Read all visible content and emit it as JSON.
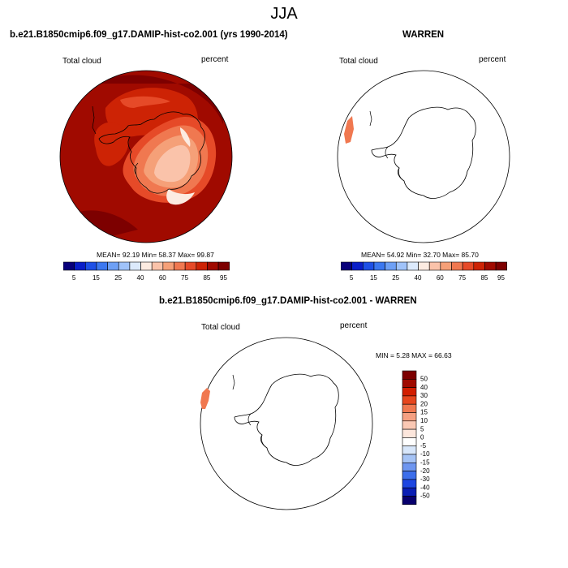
{
  "page": {
    "title": "JJA"
  },
  "panel_model": {
    "title": "b.e21.B1850cmip6.f09_g17.DAMIP-hist-co2.001 (yrs 1990-2014)",
    "variable": "Total cloud",
    "units": "percent",
    "stats": "MEAN=  92.19  Min=  58.37  Max=  99.87"
  },
  "panel_obs": {
    "title": "WARREN",
    "variable": "Total cloud",
    "units": "percent",
    "stats": "MEAN=  54.92  Min=  32.70  Max=  85.70"
  },
  "panel_diff": {
    "title": "b.e21.B1850cmip6.f09_g17.DAMIP-hist-co2.001 - WARREN",
    "variable": "Total cloud",
    "units": "percent",
    "stats": "MIN =  5.28 MAX =  66.63"
  },
  "colors": {
    "abs_scale": [
      "#08007a",
      "#0a1ec8",
      "#1e50e6",
      "#3c78f0",
      "#6ea0f5",
      "#a0c3fa",
      "#dceafc",
      "#fcebe1",
      "#fac3aa",
      "#f5a078",
      "#f07850",
      "#e64a28",
      "#cd2305",
      "#a00a00",
      "#7d0000"
    ],
    "diff_scale": [
      "#08006e",
      "#0a1eb4",
      "#1e46e1",
      "#3c6eeb",
      "#6e96f0",
      "#a5c3f5",
      "#d7e6fa",
      "#ffffff",
      "#fce6dc",
      "#fac8b4",
      "#f5a082",
      "#f07850",
      "#e6461e",
      "#d21e00",
      "#a00a00",
      "#7d0000"
    ]
  },
  "chart_data": [
    {
      "type": "heatmap",
      "projection": "south-polar-stereographic",
      "title": "b.e21.B1850cmip6.f09_g17.DAMIP-hist-co2.001 (yrs 1990-2014)",
      "variable": "Total cloud",
      "units": "percent",
      "mean": 92.19,
      "min": 58.37,
      "max": 99.87,
      "colorbar_levels": [
        "5",
        "15",
        "25",
        "40",
        "60",
        "75",
        "85",
        "95"
      ]
    },
    {
      "type": "heatmap",
      "projection": "south-polar-stereographic",
      "title": "WARREN",
      "variable": "Total cloud",
      "units": "percent",
      "mean": 54.92,
      "min": 32.7,
      "max": 85.7,
      "colorbar_levels": [
        "5",
        "15",
        "25",
        "40",
        "60",
        "75",
        "85",
        "95"
      ]
    },
    {
      "type": "heatmap",
      "projection": "south-polar-stereographic",
      "title": "b.e21.B1850cmip6.f09_g17.DAMIP-hist-co2.001 - WARREN",
      "variable": "Total cloud",
      "units": "percent",
      "min": 5.28,
      "max": 66.63,
      "colorbar_levels": [
        "50",
        "40",
        "30",
        "20",
        "15",
        "10",
        "5",
        "0",
        "-5",
        "-10",
        "-15",
        "-20",
        "-30",
        "-40",
        "-50"
      ]
    }
  ]
}
